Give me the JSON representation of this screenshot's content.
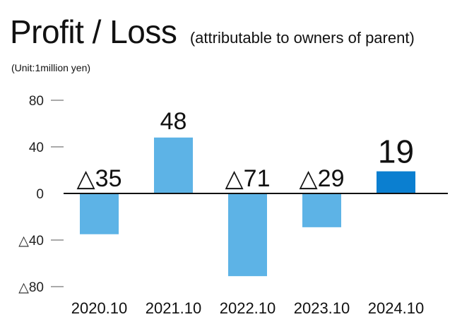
{
  "title": "Profit / Loss",
  "subtitle": "(attributable to owners of parent)",
  "unit": "(Unit:1million yen)",
  "chart_data": {
    "type": "bar",
    "categories": [
      "2020.10",
      "2021.10",
      "2022.10",
      "2023.10",
      "2024.10"
    ],
    "values": [
      -35,
      48,
      -71,
      -29,
      19
    ],
    "value_labels": [
      "△35",
      "48",
      "△71",
      "△29",
      "19"
    ],
    "ylim": [
      -80,
      80
    ],
    "yticks": [
      80,
      40,
      0,
      -40,
      -80
    ],
    "ytick_labels": [
      "80",
      "40",
      "0",
      "△40",
      "△80"
    ],
    "grid": false,
    "bar_color": "#5db3e6",
    "highlight_color": "#0b7fd0",
    "highlight_index": 4
  }
}
